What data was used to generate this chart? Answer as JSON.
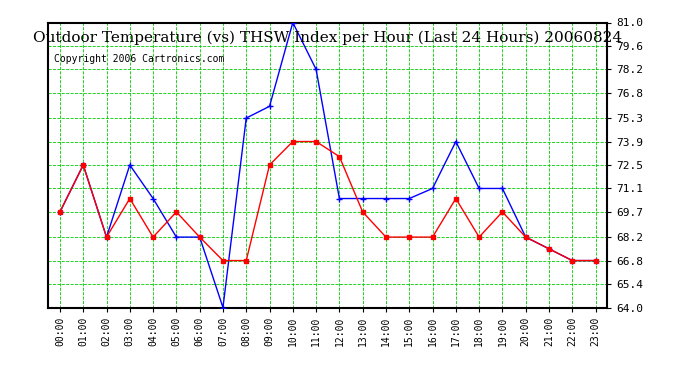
{
  "title": "Outdoor Temperature (vs) THSW Index per Hour (Last 24 Hours) 20060824",
  "copyright": "Copyright 2006 Cartronics.com",
  "hours": [
    "00:00",
    "01:00",
    "02:00",
    "03:00",
    "04:00",
    "05:00",
    "06:00",
    "07:00",
    "08:00",
    "09:00",
    "10:00",
    "11:00",
    "12:00",
    "13:00",
    "14:00",
    "15:00",
    "16:00",
    "17:00",
    "18:00",
    "19:00",
    "20:00",
    "21:00",
    "22:00",
    "23:00"
  ],
  "temp": [
    69.7,
    72.5,
    68.2,
    70.5,
    68.2,
    69.7,
    68.2,
    66.8,
    66.8,
    72.5,
    73.9,
    73.9,
    73.0,
    69.7,
    68.2,
    68.2,
    68.2,
    70.5,
    68.2,
    69.7,
    68.2,
    67.5,
    66.8,
    66.8
  ],
  "thsw": [
    69.7,
    72.5,
    68.2,
    72.5,
    70.5,
    68.2,
    68.2,
    64.0,
    75.3,
    76.0,
    81.0,
    78.2,
    70.5,
    70.5,
    70.5,
    70.5,
    71.1,
    73.9,
    71.1,
    71.1,
    68.2,
    67.5,
    66.8,
    66.8
  ],
  "temp_color": "#ff0000",
  "thsw_color": "#0000ff",
  "bg_color": "#ffffff",
  "grid_color": "#00cc00",
  "ylim_min": 64.0,
  "ylim_max": 81.0,
  "yticks": [
    64.0,
    65.4,
    66.8,
    68.2,
    69.7,
    71.1,
    72.5,
    73.9,
    75.3,
    76.8,
    78.2,
    79.6,
    81.0
  ],
  "title_fontsize": 11,
  "copyright_fontsize": 7
}
